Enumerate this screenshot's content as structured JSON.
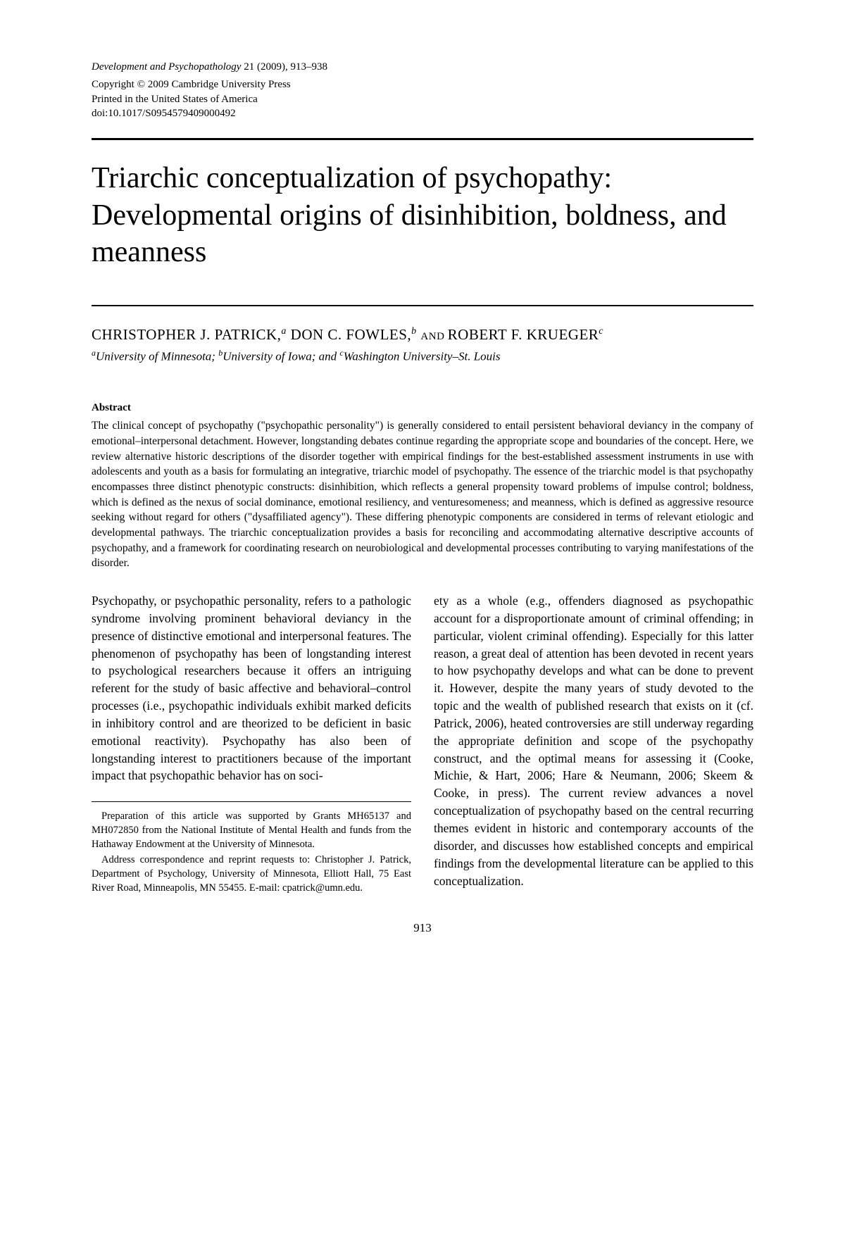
{
  "journal": {
    "name_vol": "Development and Psychopathology",
    "vol_issue": "21 (2009), 913–938",
    "copyright": "Copyright © 2009 Cambridge University Press",
    "printed": "Printed in the United States of America",
    "doi": "doi:10.1017/S0954579409000492"
  },
  "title": "Triarchic conceptualization of psychopathy: Developmental origins of disinhibition, boldness, and meanness",
  "authors": {
    "a1": "CHRISTOPHER J. PATRICK,",
    "sup1": "a",
    "a2": " DON C. FOWLES,",
    "sup2": "b",
    "and": " AND ",
    "a3": "ROBERT F. KRUEGER",
    "sup3": "c"
  },
  "affiliations_html": "ᵃUniversity of Minnesota; ᵇUniversity of Iowa; and ᶜWashington University–St. Louis",
  "affiliations": {
    "s1": "a",
    "t1": "University of Minnesota; ",
    "s2": "b",
    "t2": "University of Iowa; and ",
    "s3": "c",
    "t3": "Washington University–St. Louis"
  },
  "abstract_heading": "Abstract",
  "abstract": "The clinical concept of psychopathy (\"psychopathic personality\") is generally considered to entail persistent behavioral deviancy in the company of emotional–interpersonal detachment. However, longstanding debates continue regarding the appropriate scope and boundaries of the concept. Here, we review alternative historic descriptions of the disorder together with empirical findings for the best-established assessment instruments in use with adolescents and youth as a basis for formulating an integrative, triarchic model of psychopathy. The essence of the triarchic model is that psychopathy encompasses three distinct phenotypic constructs: disinhibition, which reflects a general propensity toward problems of impulse control; boldness, which is defined as the nexus of social dominance, emotional resiliency, and venturesomeness; and meanness, which is defined as aggressive resource seeking without regard for others (\"dysaffiliated agency\"). These differing phenotypic components are considered in terms of relevant etiologic and developmental pathways. The triarchic conceptualization provides a basis for reconciling and accommodating alternative descriptive accounts of psychopathy, and a framework for coordinating research on neurobiological and developmental processes contributing to varying manifestations of the disorder.",
  "body": {
    "left": "Psychopathy, or psychopathic personality, refers to a pathologic syndrome involving prominent behavioral deviancy in the presence of distinctive emotional and interpersonal features. The phenomenon of psychopathy has been of longstanding interest to psychological researchers because it offers an intriguing referent for the study of basic affective and behavioral–control processes (i.e., psychopathic individuals exhibit marked deficits in inhibitory control and are theorized to be deficient in basic emotional reactivity). Psychopathy has also been of longstanding interest to practitioners because of the important impact that psychopathic behavior has on soci-",
    "right": "ety as a whole (e.g., offenders diagnosed as psychopathic account for a disproportionate amount of criminal offending; in particular, violent criminal offending). Especially for this latter reason, a great deal of attention has been devoted in recent years to how psychopathy develops and what can be done to prevent it. However, despite the many years of study devoted to the topic and the wealth of published research that exists on it (cf. Patrick, 2006), heated controversies are still underway regarding the appropriate definition and scope of the psychopathy construct, and the optimal means for assessing it (Cooke, Michie, & Hart, 2006; Hare & Neumann, 2006; Skeem & Cooke, in press). The current review advances a novel conceptualization of psychopathy based on the central recurring themes evident in historic and contemporary accounts of the disorder, and discusses how established concepts and empirical findings from the developmental literature can be applied to this conceptualization."
  },
  "footnote": {
    "p1": "Preparation of this article was supported by Grants MH65137 and MH072850 from the National Institute of Mental Health and funds from the Hathaway Endowment at the University of Minnesota.",
    "p2": "Address correspondence and reprint requests to: Christopher J. Patrick, Department of Psychology, University of Minnesota, Elliott Hall, 75 East River Road, Minneapolis, MN 55455. E-mail: cpatrick@umn.edu."
  },
  "page_number": "913"
}
